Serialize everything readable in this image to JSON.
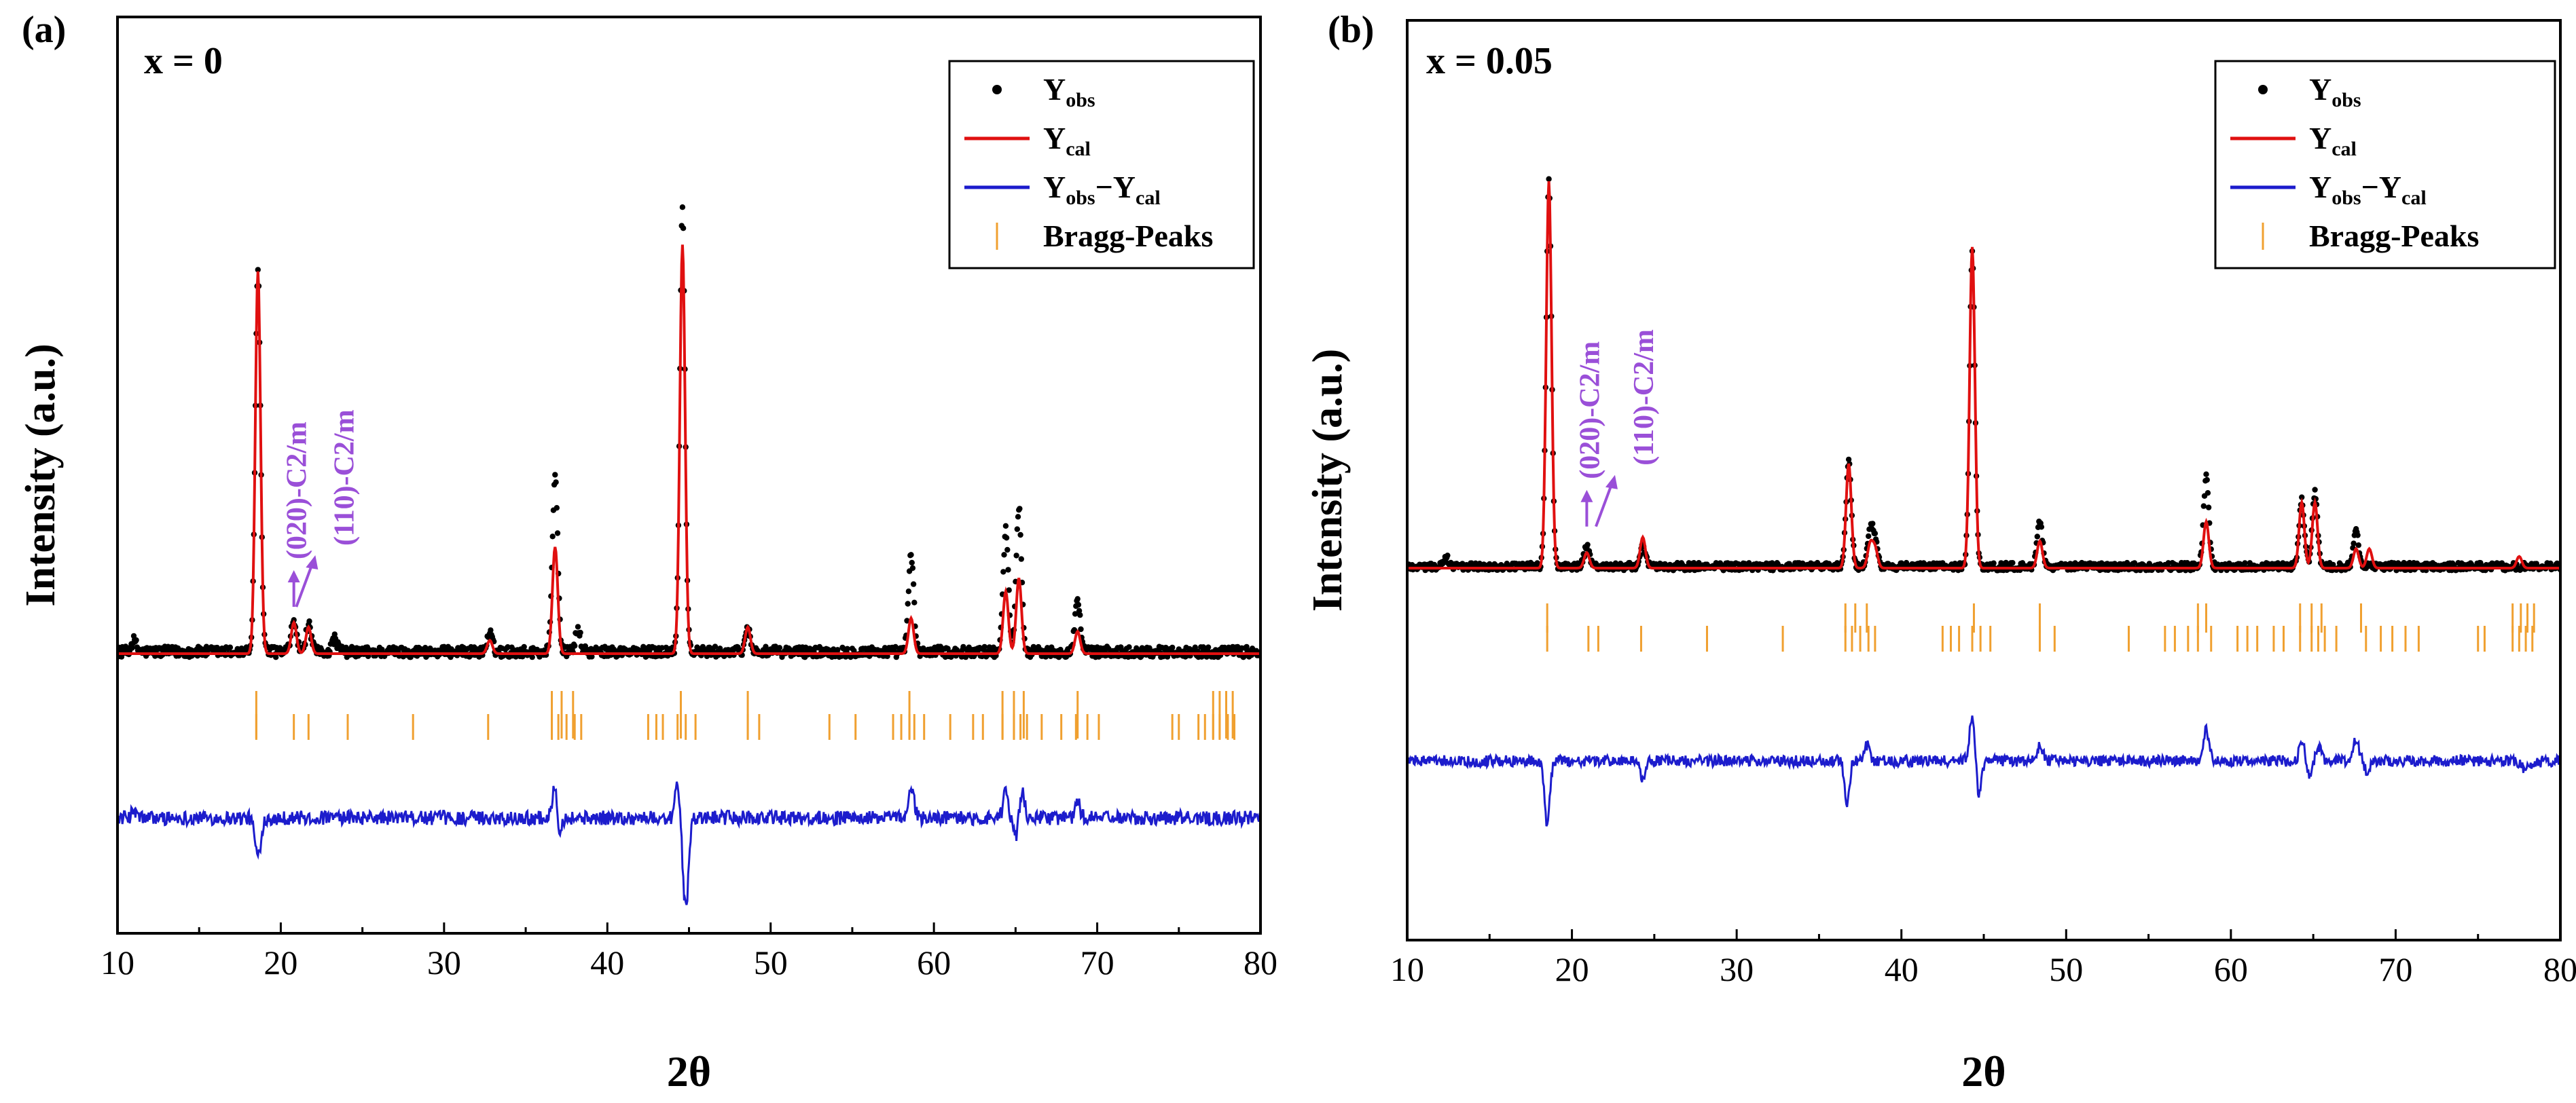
{
  "chart_data": [
    {
      "type": "line",
      "panel_label": "(a)",
      "composition": "x = 0",
      "xlabel": "2θ",
      "ylabel": "Intensity (a.u.)",
      "xlim": [
        10,
        80
      ],
      "x_ticks": [
        "10",
        "20",
        "30",
        "40",
        "50",
        "60",
        "70",
        "80"
      ],
      "y_ticks": "none",
      "legend": {
        "position": "top-right",
        "entries": [
          {
            "name": "Y",
            "sub": "obs",
            "style": "dots",
            "color": "#000000"
          },
          {
            "name": "Y",
            "sub": "cal",
            "style": "line",
            "color": "#e01010"
          },
          {
            "name": "Y",
            "sub": "obs",
            "name2": "−Y",
            "sub2": "cal",
            "style": "line",
            "color": "#1c1ccc"
          },
          {
            "name": "Bragg-Peaks",
            "style": "tick",
            "color": "#f0a030"
          }
        ]
      },
      "annotations": [
        {
          "text": "(020)-C2/m",
          "x": 20.8
        },
        {
          "text": "(110)-C2/m",
          "x": 21.7
        }
      ],
      "colors": {
        "obs": "#000000",
        "cal": "#e01010",
        "diff": "#1c1ccc",
        "bragg": "#f0a030",
        "annot": "#9a4fd8"
      },
      "series": [
        {
          "name": "Yobs",
          "peaks": [
            [
              11.0,
              0.025
            ],
            [
              18.6,
              0.86
            ],
            [
              20.8,
              0.07
            ],
            [
              21.7,
              0.06
            ],
            [
              23.3,
              0.03
            ],
            [
              32.8,
              0.04
            ],
            [
              36.8,
              0.4
            ],
            [
              38.2,
              0.05
            ],
            [
              44.6,
              1.0
            ],
            [
              48.6,
              0.05
            ],
            [
              58.6,
              0.22
            ],
            [
              64.4,
              0.28
            ],
            [
              65.2,
              0.33
            ],
            [
              68.8,
              0.12
            ]
          ]
        },
        {
          "name": "Ycal",
          "peaks": [
            [
              18.6,
              0.86
            ],
            [
              20.8,
              0.07
            ],
            [
              21.7,
              0.06
            ],
            [
              32.8,
              0.03
            ],
            [
              36.8,
              0.24
            ],
            [
              44.6,
              0.92
            ],
            [
              48.6,
              0.06
            ],
            [
              58.6,
              0.08
            ],
            [
              64.4,
              0.14
            ],
            [
              65.2,
              0.17
            ],
            [
              68.8,
              0.05
            ]
          ]
        },
        {
          "name": "Yobs-Ycal",
          "features": [
            [
              11.0,
              0.02,
              0.3
            ],
            [
              18.6,
              -0.12,
              0.35
            ],
            [
              36.8,
              0.12,
              0.3
            ],
            [
              37.0,
              -0.06,
              0.3
            ],
            [
              44.3,
              0.1,
              0.3
            ],
            [
              44.8,
              -0.28,
              0.35
            ],
            [
              58.6,
              0.1,
              0.35
            ],
            [
              64.4,
              0.08,
              0.3
            ],
            [
              65.0,
              -0.06,
              0.3
            ],
            [
              65.4,
              0.08,
              0.3
            ],
            [
              68.8,
              0.05,
              0.3
            ]
          ]
        }
      ],
      "bragg_row1": [
        18.5,
        36.6,
        37.2,
        37.9,
        44.5,
        48.6,
        58.5,
        64.2,
        64.9,
        65.5,
        68.8,
        77.1,
        77.5,
        77.9,
        78.3
      ],
      "bragg_row2": [
        18.5,
        20.8,
        21.7,
        24.1,
        28.1,
        32.7,
        36.6,
        37.0,
        37.5,
        38.0,
        38.4,
        42.5,
        43.0,
        43.4,
        44.3,
        44.8,
        45.4,
        48.6,
        49.3,
        53.6,
        55.2,
        57.5,
        58.0,
        58.5,
        58.8,
        59.4,
        61.0,
        62.4,
        63.0,
        64.2,
        64.9,
        65.3,
        65.7,
        66.6,
        67.8,
        68.7,
        69.4,
        70.1,
        74.6,
        75.0,
        76.2,
        76.6,
        77.1,
        77.5,
        78.0,
        78.4
      ]
    },
    {
      "type": "line",
      "panel_label": "(b)",
      "composition": "x = 0.05",
      "xlabel": "2θ",
      "ylabel": "Intensity (a.u.)",
      "xlim": [
        10,
        80
      ],
      "x_ticks": [
        "10",
        "20",
        "30",
        "40",
        "50",
        "60",
        "70",
        "80"
      ],
      "y_ticks": "none",
      "legend": {
        "position": "top-right",
        "entries": [
          {
            "name": "Y",
            "sub": "obs",
            "style": "dots",
            "color": "#000000"
          },
          {
            "name": "Y",
            "sub": "cal",
            "style": "line",
            "color": "#e01010"
          },
          {
            "name": "Y",
            "sub": "obs",
            "name2": "−Y",
            "sub2": "cal",
            "style": "line",
            "color": "#1c1ccc"
          },
          {
            "name": "Bragg-Peaks",
            "style": "tick",
            "color": "#f0a030"
          }
        ]
      },
      "annotations": [
        {
          "text": "(020)-C2/m",
          "x": 20.9
        },
        {
          "text": "(110)-C2/m",
          "x": 22.2
        }
      ],
      "colors": {
        "obs": "#000000",
        "cal": "#e01010",
        "diff": "#1c1ccc",
        "bragg": "#f0a030",
        "annot": "#9a4fd8"
      },
      "series": [
        {
          "name": "Yobs",
          "peaks": [
            [
              12.4,
              0.02
            ],
            [
              18.6,
              1.0
            ],
            [
              20.9,
              0.05
            ],
            [
              24.3,
              0.05
            ],
            [
              36.8,
              0.27
            ],
            [
              38.1,
              0.09
            ],
            [
              38.4,
              0.07
            ],
            [
              44.3,
              0.81
            ],
            [
              48.4,
              0.12
            ],
            [
              58.5,
              0.23
            ],
            [
              64.3,
              0.17
            ],
            [
              65.1,
              0.19
            ],
            [
              67.6,
              0.09
            ]
          ]
        },
        {
          "name": "Ycal",
          "peaks": [
            [
              18.6,
              1.0
            ],
            [
              20.9,
              0.04
            ],
            [
              24.3,
              0.08
            ],
            [
              36.8,
              0.27
            ],
            [
              38.1,
              0.06
            ],
            [
              38.4,
              0.05
            ],
            [
              44.3,
              0.83
            ],
            [
              48.4,
              0.07
            ],
            [
              58.5,
              0.12
            ],
            [
              64.3,
              0.17
            ],
            [
              65.1,
              0.17
            ],
            [
              67.6,
              0.05
            ],
            [
              68.4,
              0.05
            ],
            [
              77.5,
              0.03
            ]
          ]
        },
        {
          "name": "Yobs-Ycal",
          "features": [
            [
              18.5,
              -0.26,
              0.3
            ],
            [
              24.3,
              -0.08,
              0.3
            ],
            [
              36.7,
              -0.16,
              0.3
            ],
            [
              37.9,
              0.06,
              0.35
            ],
            [
              44.3,
              0.17,
              0.35
            ],
            [
              44.7,
              -0.14,
              0.3
            ],
            [
              48.4,
              0.06,
              0.35
            ],
            [
              58.5,
              0.12,
              0.35
            ],
            [
              64.3,
              0.08,
              0.3
            ],
            [
              64.8,
              -0.06,
              0.3
            ],
            [
              65.3,
              0.06,
              0.3
            ],
            [
              67.6,
              0.08,
              0.35
            ],
            [
              68.3,
              -0.05,
              0.3
            ],
            [
              78.0,
              -0.03,
              0.8
            ]
          ]
        }
      ],
      "bragg_row1": [
        18.5,
        36.6,
        37.2,
        37.9,
        44.4,
        48.4,
        58.0,
        58.5,
        64.2,
        64.9,
        65.5,
        67.9,
        77.1,
        77.6,
        78.0,
        78.4
      ],
      "bragg_row2": [
        18.5,
        21.0,
        21.6,
        24.2,
        28.2,
        32.8,
        36.6,
        37.0,
        37.5,
        38.0,
        38.4,
        42.5,
        43.0,
        43.5,
        44.3,
        44.8,
        45.4,
        48.4,
        49.3,
        53.8,
        56.0,
        56.6,
        57.4,
        58.0,
        58.8,
        60.4,
        61.0,
        61.6,
        62.6,
        63.2,
        64.2,
        64.9,
        65.3,
        65.7,
        66.4,
        68.2,
        69.1,
        69.8,
        70.6,
        71.4,
        75.0,
        75.4,
        77.1,
        77.5,
        77.9,
        78.3
      ]
    }
  ]
}
